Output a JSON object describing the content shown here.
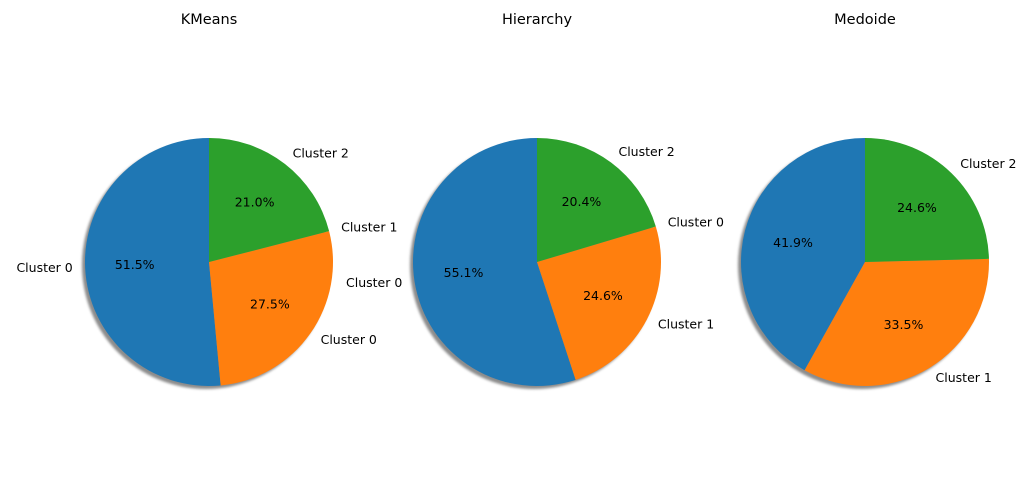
{
  "chart_data": [
    {
      "type": "pie",
      "title": "KMeans",
      "shadow": true,
      "start_angle": 90,
      "direction": "counterclockwise",
      "slices": [
        {
          "label": "Cluster 0",
          "value": 51.5,
          "percent_label": "51.5%",
          "color": "#1f77b4"
        },
        {
          "label": "Cluster 0",
          "value": 27.5,
          "percent_label": "27.5%",
          "color": "#ff7f0e"
        },
        {
          "label": "Cluster 1",
          "value": 0,
          "percent_label": "",
          "color": "#ff7f0e"
        },
        {
          "label": "Cluster 2",
          "value": 21.0,
          "percent_label": "21.0%",
          "color": "#2ca02c"
        }
      ]
    },
    {
      "type": "pie",
      "title": "Hierarchy",
      "shadow": true,
      "start_angle": 90,
      "direction": "counterclockwise",
      "slices": [
        {
          "label": "Cluster 0",
          "value": 55.1,
          "percent_label": "55.1%",
          "color": "#1f77b4"
        },
        {
          "label": "Cluster 1",
          "value": 24.6,
          "percent_label": "24.6%",
          "color": "#ff7f0e"
        },
        {
          "label": "Cluster 0",
          "value": 0,
          "percent_label": "",
          "color": "#ff7f0e"
        },
        {
          "label": "Cluster 2",
          "value": 20.4,
          "percent_label": "20.4%",
          "color": "#2ca02c"
        }
      ]
    },
    {
      "type": "pie",
      "title": "Medoide",
      "shadow": true,
      "start_angle": 90,
      "direction": "counterclockwise",
      "slices": [
        {
          "label": "",
          "value": 41.9,
          "percent_label": "41.9%",
          "color": "#1f77b4"
        },
        {
          "label": "Cluster 1",
          "value": 33.5,
          "percent_label": "33.5%",
          "color": "#ff7f0e"
        },
        {
          "label": "Cluster 2",
          "value": 24.6,
          "percent_label": "24.6%",
          "color": "#2ca02c"
        }
      ]
    }
  ]
}
